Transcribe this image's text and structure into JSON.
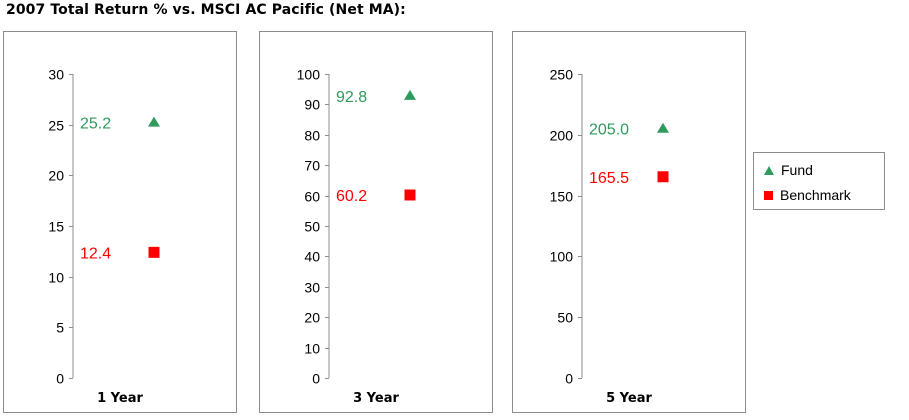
{
  "title": "2007 Total Return % vs. MSCI AC Pacific (Net MA):",
  "colors": {
    "fund": "#2f9a5d",
    "benchmark": "#ff0000",
    "axis": "#8c8c8c",
    "border": "#8c8c8c"
  },
  "legend": {
    "fund_label": "Fund",
    "benchmark_label": "Benchmark",
    "fund_icon": "triangle",
    "benchmark_icon": "square",
    "placement": "right"
  },
  "chart_data": [
    {
      "type": "scatter",
      "period_label": "1 Year",
      "ylim": [
        0,
        30
      ],
      "yticks": [
        0,
        5,
        10,
        15,
        20,
        25,
        30
      ],
      "series": [
        {
          "name": "Fund",
          "marker": "triangle",
          "value": 25.2,
          "label": "25.2"
        },
        {
          "name": "Benchmark",
          "marker": "square",
          "value": 12.4,
          "label": "12.4"
        }
      ]
    },
    {
      "type": "scatter",
      "period_label": "3 Year",
      "ylim": [
        0,
        100
      ],
      "yticks": [
        0,
        10,
        20,
        30,
        40,
        50,
        60,
        70,
        80,
        90,
        100
      ],
      "series": [
        {
          "name": "Fund",
          "marker": "triangle",
          "value": 92.8,
          "label": "92.8"
        },
        {
          "name": "Benchmark",
          "marker": "square",
          "value": 60.2,
          "label": "60.2"
        }
      ]
    },
    {
      "type": "scatter",
      "period_label": "5 Year",
      "ylim": [
        0,
        250
      ],
      "yticks": [
        0,
        50,
        100,
        150,
        200,
        250
      ],
      "series": [
        {
          "name": "Fund",
          "marker": "triangle",
          "value": 205.0,
          "label": "205.0"
        },
        {
          "name": "Benchmark",
          "marker": "square",
          "value": 165.5,
          "label": "165.5"
        }
      ]
    }
  ]
}
